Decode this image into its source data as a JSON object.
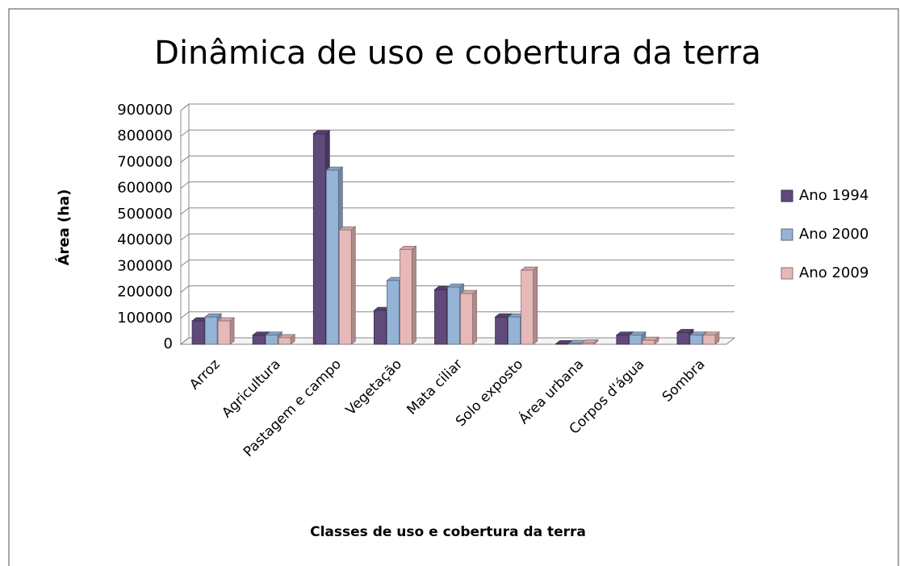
{
  "chart_data": {
    "type": "bar3d",
    "title": "Dinâmica de uso e cobertura da terra",
    "x_label": "Classes de uso e cobertura da terra",
    "y_label": "Área (ha)",
    "categories": [
      "Arroz",
      "Agricultura",
      "Pastagem e campo",
      "Vegetação",
      "Mata ciliar",
      "Solo exposto",
      "Área urbana",
      "Corpos d'água",
      "Sombra"
    ],
    "series": [
      {
        "name": "Ano 1994",
        "color": "#604a7b",
        "values": [
          90000,
          35000,
          810000,
          130000,
          210000,
          105000,
          2000,
          35000,
          45000
        ]
      },
      {
        "name": "Ano 2000",
        "color": "#95b3d7",
        "values": [
          105000,
          35000,
          670000,
          245000,
          220000,
          105000,
          3000,
          35000,
          35000
        ]
      },
      {
        "name": "Ano 2009",
        "color": "#e6b9b8",
        "values": [
          90000,
          25000,
          440000,
          365000,
          195000,
          285000,
          5000,
          15000,
          35000
        ]
      }
    ],
    "ylim": [
      0,
      900000
    ],
    "yticks": [
      0,
      100000,
      200000,
      300000,
      400000,
      500000,
      600000,
      700000,
      800000,
      900000
    ],
    "grid": true,
    "legend": "right"
  }
}
